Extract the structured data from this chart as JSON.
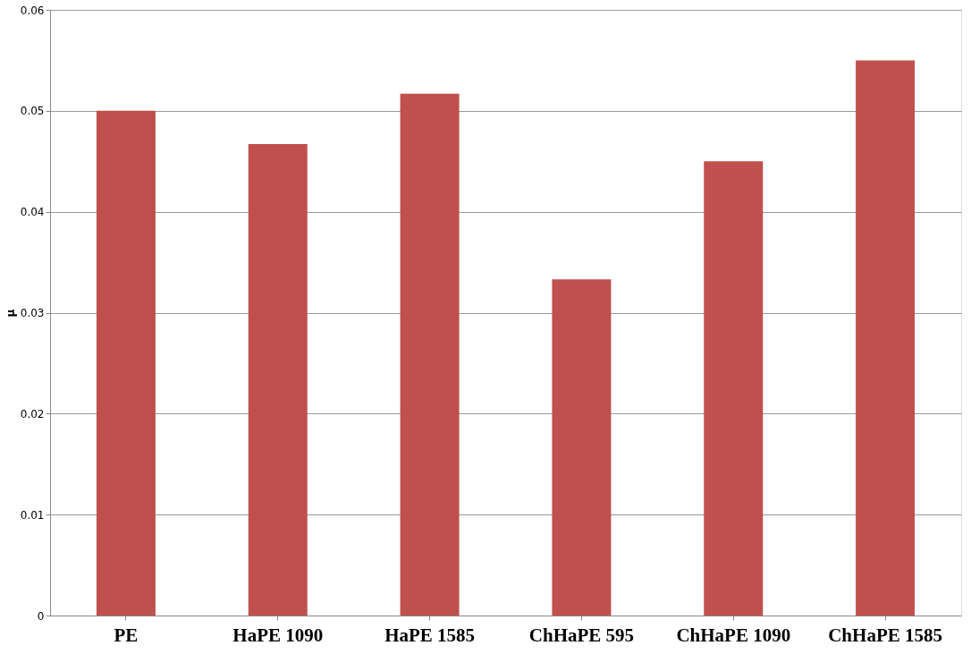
{
  "chart_data": {
    "type": "bar",
    "ylabel": "μ",
    "categories": [
      "PE",
      "HaPE 1090",
      "HaPE 1585",
      "ChHaPE 595",
      "ChHaPE 1090",
      "ChHaPE 1585"
    ],
    "values": [
      0.05,
      0.0467,
      0.0517,
      0.0333,
      0.045,
      0.055
    ],
    "color": "#c0504d",
    "ylim": [
      0,
      0.06
    ],
    "yticks": [
      0,
      0.01,
      0.02,
      0.03,
      0.04,
      0.05,
      0.06
    ],
    "grid": "y"
  }
}
